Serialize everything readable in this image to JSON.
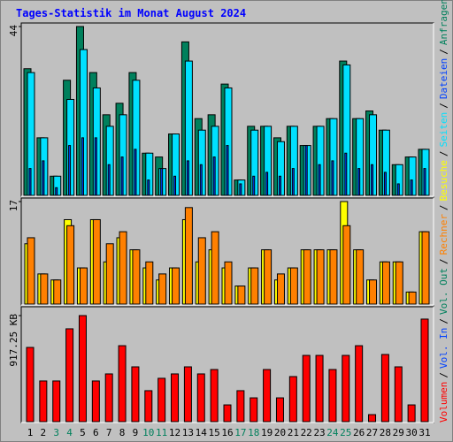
{
  "chart_data": [
    {
      "type": "bar",
      "title": "Tages-Statistik im Monat August 2024",
      "ylim": [
        0,
        44
      ],
      "yticks": [
        44
      ],
      "series": [
        {
          "name": "Anfragen",
          "color": "#00805c",
          "values": [
            33,
            15,
            5,
            30,
            44,
            32,
            21,
            24,
            32,
            11,
            10,
            16,
            40,
            20,
            21,
            29,
            4,
            18,
            18,
            15,
            18,
            13,
            18,
            20,
            35,
            20,
            22,
            17,
            8,
            10,
            12
          ]
        },
        {
          "name": "Dateien",
          "color": "#0040ff",
          "values": [
            7,
            9,
            2,
            13,
            15,
            15,
            8,
            10,
            12,
            4,
            7,
            5,
            9,
            8,
            10,
            13,
            3,
            5,
            6,
            5,
            7,
            13,
            8,
            9,
            11,
            7,
            8,
            6,
            3,
            4,
            7
          ]
        },
        {
          "name": "Seiten",
          "color": "#00e0ff",
          "values": [
            32,
            15,
            5,
            25,
            38,
            28,
            18,
            21,
            30,
            11,
            7,
            16,
            35,
            17,
            18,
            28,
            4,
            17,
            18,
            14,
            18,
            13,
            18,
            20,
            34,
            20,
            21,
            17,
            8,
            10,
            12
          ]
        }
      ]
    },
    {
      "type": "bar",
      "ylim": [
        0,
        17
      ],
      "yticks": [
        17
      ],
      "series": [
        {
          "name": "Besuche",
          "color": "#ffff00",
          "values": [
            10,
            5,
            4,
            14,
            6,
            14,
            7,
            11,
            9,
            6,
            4,
            6,
            14,
            7,
            9,
            6,
            3,
            6,
            9,
            4,
            6,
            9,
            9,
            9,
            17,
            9,
            4,
            7,
            7,
            2,
            12
          ]
        },
        {
          "name": "Rechner",
          "color": "#ff8000",
          "values": [
            11,
            5,
            4,
            13,
            6,
            14,
            10,
            12,
            9,
            7,
            5,
            6,
            16,
            11,
            12,
            7,
            3,
            6,
            9,
            5,
            6,
            9,
            9,
            9,
            13,
            9,
            4,
            7,
            7,
            2,
            12
          ]
        }
      ]
    },
    {
      "type": "bar",
      "ylim": [
        0,
        917.25
      ],
      "yticks": [
        {
          "value": 917.25,
          "label": "917.25 KB"
        }
      ],
      "series": [
        {
          "name": "Volumen",
          "color": "#ff0000",
          "values": [
            642,
            352,
            352,
            803,
            917.25,
            352,
            413,
            657,
            474,
            268,
            375,
            413,
            474,
            413,
            451,
            145,
            268,
            206,
            451,
            206,
            390,
            573,
            573,
            451,
            573,
            657,
            61,
            581,
            474,
            145,
            887
          ]
        }
      ],
      "categories": [
        1,
        2,
        3,
        4,
        5,
        6,
        7,
        8,
        9,
        10,
        11,
        12,
        13,
        14,
        15,
        16,
        17,
        18,
        19,
        20,
        21,
        22,
        23,
        24,
        25,
        26,
        27,
        28,
        29,
        30,
        31
      ],
      "category_colors": [
        "#000000",
        "#000000",
        "#00805c",
        "#00805c",
        "#000000",
        "#000000",
        "#000000",
        "#000000",
        "#000000",
        "#00805c",
        "#00805c",
        "#000000",
        "#000000",
        "#000000",
        "#000000",
        "#000000",
        "#00805c",
        "#00805c",
        "#000000",
        "#000000",
        "#000000",
        "#000000",
        "#000000",
        "#00805c",
        "#00805c",
        "#000000",
        "#000000",
        "#000000",
        "#000000",
        "#000000",
        "#000000"
      ],
      "extra_legend": [
        {
          "name": "Vol. In",
          "color": "#0040ff"
        },
        {
          "name": "Vol. Out",
          "color": "#00805c"
        }
      ],
      "legend_separator": "/"
    }
  ]
}
